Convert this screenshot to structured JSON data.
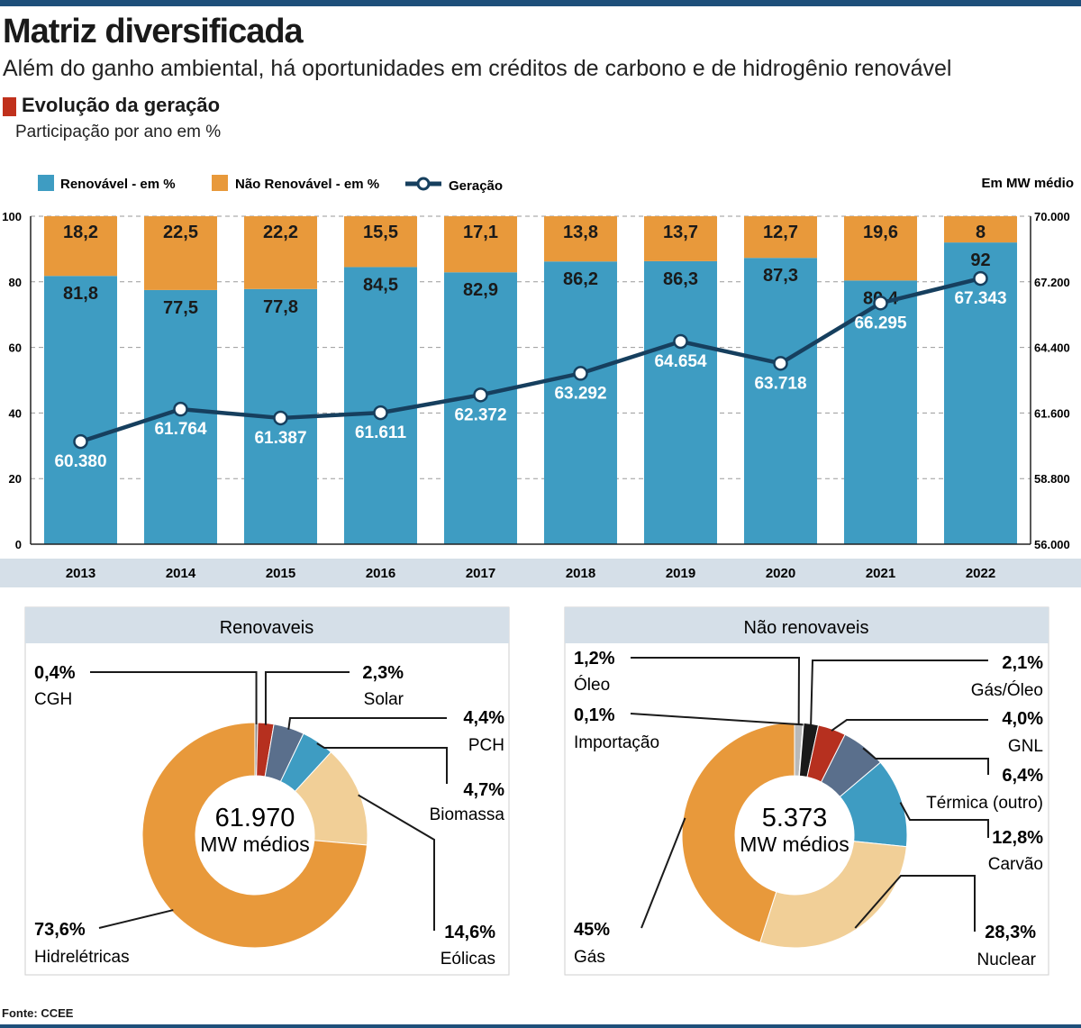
{
  "header": {
    "title": "Matriz diversificada",
    "subtitle": "Além do ganho ambiental, há oportunidades em créditos de carbono e de hidrogênio renovável",
    "section_title": "Evolução da geração",
    "section_subtitle": "Participação por ano em %"
  },
  "colors": {
    "renewable": "#3e9cc2",
    "non_renewable": "#e8993b",
    "line": "#163f5e",
    "axis_band": "#d5dfe8"
  },
  "chart_data": [
    {
      "type": "bar",
      "stacked": true,
      "categories": [
        "2013",
        "2014",
        "2015",
        "2016",
        "2017",
        "2018",
        "2019",
        "2020",
        "2021",
        "2022"
      ],
      "series": [
        {
          "name": "Renovável - em %",
          "values": [
            81.8,
            77.5,
            77.8,
            84.5,
            82.9,
            86.2,
            86.3,
            87.3,
            80.4,
            92
          ],
          "labels": [
            "81,8",
            "77,5",
            "77,8",
            "84,5",
            "82,9",
            "86,2",
            "86,3",
            "87,3",
            "80,4",
            "92"
          ]
        },
        {
          "name": "Não Renovável - em %",
          "values": [
            18.2,
            22.5,
            22.2,
            15.5,
            17.1,
            13.8,
            13.7,
            12.7,
            19.6,
            8
          ],
          "labels": [
            "18,2",
            "22,5",
            "22,2",
            "15,5",
            "17,1",
            "13,8",
            "13,7",
            "12,7",
            "19,6",
            "8"
          ]
        }
      ],
      "line_series": {
        "name": "Geração",
        "axis": "right",
        "values": [
          60380,
          61764,
          61387,
          61611,
          62372,
          63292,
          64654,
          63718,
          66295,
          67343
        ],
        "labels": [
          "60.380",
          "61.764",
          "61.387",
          "61.611",
          "62.372",
          "63.292",
          "64.654",
          "63.718",
          "66.295",
          "67.343"
        ]
      },
      "y_left": {
        "ylim": [
          0,
          100
        ],
        "ticks": [
          0,
          20,
          40,
          60,
          80,
          100
        ],
        "tick_labels": [
          "0",
          "20",
          "40",
          "60",
          "80",
          "100"
        ]
      },
      "y_right": {
        "ylim": [
          56000,
          70000
        ],
        "ticks": [
          56000,
          58800,
          61600,
          64400,
          67200,
          70000
        ],
        "tick_labels": [
          "56.000",
          "58.800",
          "61.600",
          "64.400",
          "67.200",
          "70.000"
        ],
        "label": "Em MW médio"
      },
      "legend": [
        "Renovável - em %",
        "Não Renovável - em %",
        "Geração"
      ],
      "grid": true
    },
    {
      "type": "pie",
      "donut": true,
      "title": "Renovaveis",
      "center_value": "61.970",
      "center_unit": "MW médios",
      "slices": [
        {
          "name": "CGH",
          "value": 0.4,
          "label": "0,4%",
          "color": "#8a8a8a"
        },
        {
          "name": "Solar",
          "value": 2.3,
          "label": "2,3%",
          "color": "#b6301f"
        },
        {
          "name": "PCH",
          "value": 4.4,
          "label": "4,4%",
          "color": "#5a6f8c"
        },
        {
          "name": "Biomassa",
          "value": 4.7,
          "label": "4,7%",
          "color": "#3e9cc2"
        },
        {
          "name": "Eólicas",
          "value": 14.6,
          "label": "14,6%",
          "color": "#f1cf97"
        },
        {
          "name": "Hidrelétricas",
          "value": 73.6,
          "label": "73,6%",
          "color": "#e8993b"
        }
      ]
    },
    {
      "type": "pie",
      "donut": true,
      "title": "Não renovaveis",
      "center_value": "5.373",
      "center_unit": "MW médios",
      "slices": [
        {
          "name": "Óleo",
          "value": 1.2,
          "label": "1,2%",
          "color": "#b9b9b9"
        },
        {
          "name": "Importação",
          "value": 0.1,
          "label": "0,1%",
          "color": "#777777"
        },
        {
          "name": "Gás/Óleo",
          "value": 2.1,
          "label": "2,1%",
          "color": "#1a1a1a"
        },
        {
          "name": "GNL",
          "value": 4.0,
          "label": "4,0%",
          "color": "#b6301f"
        },
        {
          "name": "Térmica (outro)",
          "value": 6.4,
          "label": "6,4%",
          "color": "#5a6f8c"
        },
        {
          "name": "Carvão",
          "value": 12.8,
          "label": "12,8%",
          "color": "#3e9cc2"
        },
        {
          "name": "Nuclear",
          "value": 28.3,
          "label": "28,3%",
          "color": "#f1cf97"
        },
        {
          "name": "Gás",
          "value": 45,
          "label": "45%",
          "color": "#e8993b"
        }
      ]
    }
  ],
  "footer": {
    "source": "Fonte: CCEE"
  }
}
